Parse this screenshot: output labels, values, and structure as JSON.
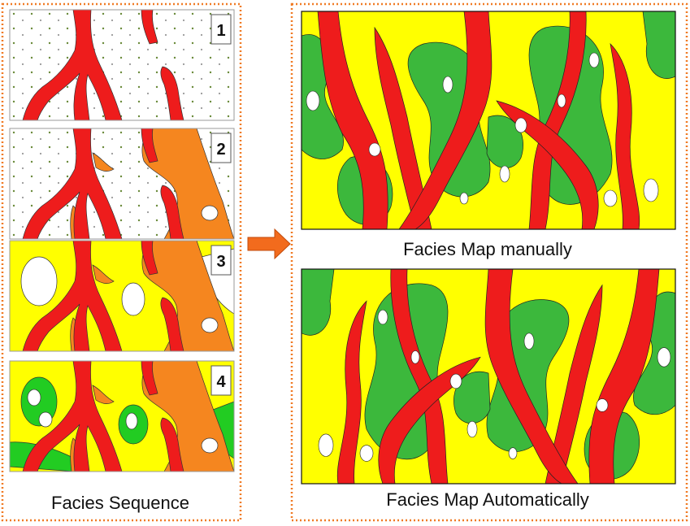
{
  "left_panel": {
    "caption": "Facies Sequence",
    "steps": [
      {
        "label": "1"
      },
      {
        "label": "2"
      },
      {
        "label": "3"
      },
      {
        "label": "4"
      }
    ]
  },
  "right_panel": {
    "maps": [
      {
        "caption": "Facies Map manually"
      },
      {
        "caption": "Facies Map Automatically"
      }
    ]
  }
}
